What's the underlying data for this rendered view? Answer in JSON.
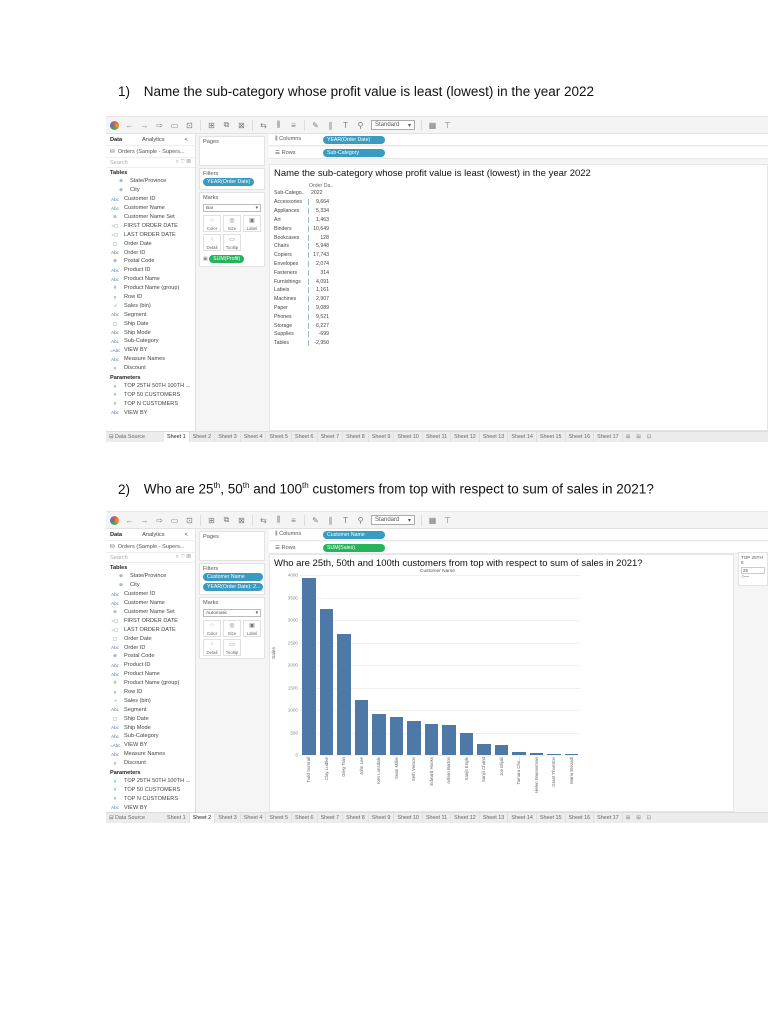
{
  "questions": [
    {
      "number": "1)",
      "text": "Name the sub-category whose profit value is least (lowest) in the year 2022"
    },
    {
      "number": "2)",
      "text_parts": [
        "Who are 25",
        "th",
        ", 50",
        "th",
        " and 100",
        "th",
        " customers from top with respect to sum of sales in 2021?"
      ]
    }
  ],
  "toolbar": {
    "format_select": "Standard"
  },
  "left_panel": {
    "tabs": [
      "Data",
      "Analytics"
    ],
    "collapse_glyph": "<",
    "datasource": "Orders (Sample - Supers...",
    "search_placeholder": "Search",
    "tables_header": "Tables",
    "fields": [
      {
        "icon": "globe",
        "name": "State/Province",
        "indent": true
      },
      {
        "icon": "globe",
        "name": "City",
        "indent": true
      },
      {
        "icon": "Abc",
        "name": "Customer ID"
      },
      {
        "icon": "Abc",
        "name": "Customer Name"
      },
      {
        "icon": "set",
        "name": "Customer Name Set"
      },
      {
        "icon": "calc-date",
        "name": "FIRST ORDER DATE"
      },
      {
        "icon": "calc-date",
        "name": "LAST ORDER DATE"
      },
      {
        "icon": "date",
        "name": "Order Date"
      },
      {
        "icon": "Abc",
        "name": "Order ID"
      },
      {
        "icon": "globe",
        "name": "Postal Code"
      },
      {
        "icon": "Abc",
        "name": "Product ID"
      },
      {
        "icon": "Abc",
        "name": "Product Name"
      },
      {
        "icon": "group",
        "name": "Product Name (group)"
      },
      {
        "icon": "#",
        "name": "Row ID"
      },
      {
        "icon": "bin",
        "name": "Sales (bin)"
      },
      {
        "icon": "Abc",
        "name": "Segment"
      },
      {
        "icon": "date",
        "name": "Ship Date"
      },
      {
        "icon": "Abc",
        "name": "Ship Mode"
      },
      {
        "icon": "Abc",
        "name": "Sub-Category"
      },
      {
        "icon": "=Abc",
        "name": "VIEW BY"
      },
      {
        "icon": "Abc",
        "name": "Measure Names"
      },
      {
        "icon": "#",
        "name": "Discount"
      }
    ],
    "parameters_header": "Parameters",
    "parameters": [
      {
        "icon": "#",
        "name": "TOP 25TH 50TH 100TH ..."
      },
      {
        "icon": "#",
        "name": "TOP 50 CUSTOMERS"
      },
      {
        "icon": "#",
        "name": "TOP N CUSTOMERS"
      },
      {
        "icon": "Abc",
        "name": "VIEW BY"
      }
    ]
  },
  "cards": {
    "pages": "Pages",
    "filters": "Filters",
    "marks": "Marks",
    "columns": "Columns",
    "rows": "Rows",
    "mark_buttons": [
      "Color",
      "Size",
      "Label",
      "Detail",
      "Tooltip"
    ]
  },
  "bottom_tabs": {
    "data_source": "Data Source",
    "sheets": [
      "Sheet 1",
      "Sheet 2",
      "Sheet 3",
      "Sheet 4",
      "Sheet 5",
      "Sheet 6",
      "Sheet 7",
      "Sheet 8",
      "Sheet 9",
      "Sheet 10",
      "Sheet 11",
      "Sheet 12",
      "Sheet 13",
      "Sheet 14",
      "Sheet 15",
      "Sheet 16",
      "Sheet 17"
    ]
  },
  "shot1": {
    "columns_pill": "YEAR(Order Date)",
    "rows_pill": "Sub-Category",
    "filter_pill": "YEAR(Order Date)",
    "mark_type": "Bar",
    "marks_pill": "SUM(Profit)",
    "active_sheet": "Sheet 1",
    "view_title": "Name the sub-category whose profit value is least (lowest) in the year 2022",
    "table": {
      "col_header_top": "Order Da..",
      "row_header": "Sub-Catego..",
      "col_header": "2022",
      "rows": [
        [
          "Accessories",
          "9,664"
        ],
        [
          "Appliances",
          "5,334"
        ],
        [
          "Art",
          "1,463"
        ],
        [
          "Binders",
          "10,649"
        ],
        [
          "Bookcases",
          "128"
        ],
        [
          "Chairs",
          "5,948"
        ],
        [
          "Copiers",
          "17,743"
        ],
        [
          "Envelopes",
          "2,074"
        ],
        [
          "Fasteners",
          "314"
        ],
        [
          "Furnishings",
          "4,091"
        ],
        [
          "Labels",
          "1,161"
        ],
        [
          "Machines",
          "2,907"
        ],
        [
          "Paper",
          "9,089"
        ],
        [
          "Phones",
          "9,521"
        ],
        [
          "Storage",
          "6,227"
        ],
        [
          "Supplies",
          "-699"
        ],
        [
          "Tables",
          "-2,950"
        ]
      ]
    }
  },
  "shot2": {
    "columns_pill": "Customer Name",
    "rows_pill": "SUM(Sales)",
    "filter_pills": [
      "Customer Name",
      "YEAR(Order Date): 2..."
    ],
    "mark_type": "Automatic",
    "active_sheet": "Sheet 2",
    "view_title": "Who are 25th, 50th and 100th customers from top with respect to sum of sales in 2021?",
    "parameter_card": {
      "title": "TOP 25TH 5",
      "value": "25"
    }
  },
  "chart_data": {
    "type": "bar",
    "title": "Who are 25th, 50th and 100th customers from top with respect to sum of sales in 2021?",
    "xlabel": "Customer Name",
    "ylabel": "Sales",
    "ylim": [
      0,
      4000
    ],
    "yticks": [
      0,
      500,
      1000,
      1500,
      2000,
      2500,
      3000,
      3500,
      4000
    ],
    "grid": true,
    "categories": [
      "Todd Sumrall",
      "Clay Ludtke",
      "Greg Tran",
      "John Lee",
      "Ken Lonsdale",
      "Sean Miller",
      "Seth Vernon",
      "Edward Hooks",
      "Adrian Barton",
      "Sanjit Engle",
      "Sanjit Chand",
      "Joe Elijah",
      "Tamara Cho...",
      "Helen Wasserman",
      "Grant Thornton",
      "Maria Etezadi"
    ],
    "values": [
      3940,
      3250,
      2680,
      1230,
      910,
      850,
      760,
      700,
      670,
      500,
      240,
      220,
      70,
      40,
      20,
      5
    ],
    "series_color": "#4e79a7"
  }
}
